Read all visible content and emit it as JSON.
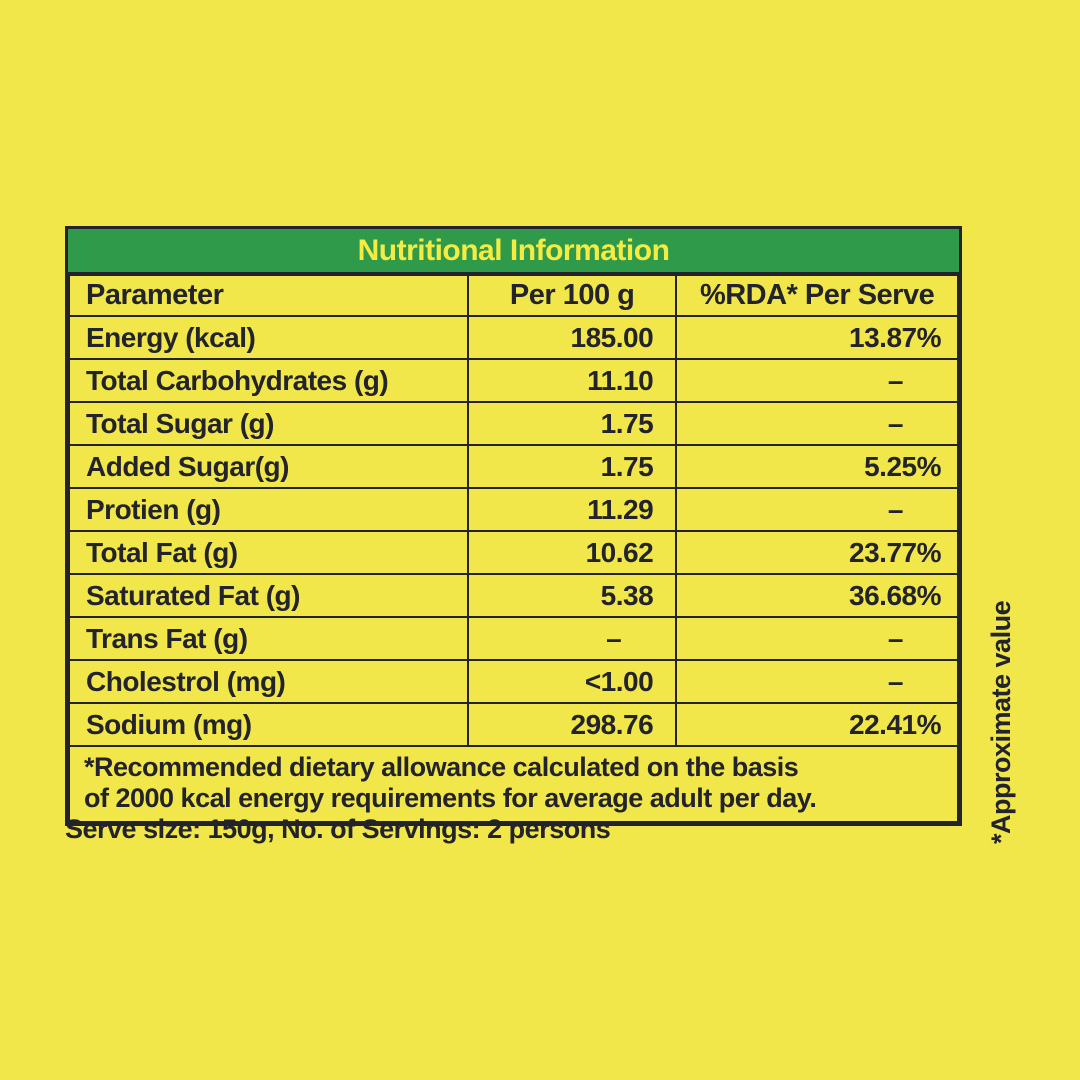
{
  "colors": {
    "background": "#f1e74b",
    "title_bar_bg": "#2f9b4a",
    "title_text": "#f5eb43",
    "text_and_borders": "#23232b"
  },
  "table": {
    "title": "Nutritional Information",
    "columns": [
      "Parameter",
      "Per 100 g",
      "%RDA* Per Serve"
    ],
    "dash": "–",
    "rows": [
      {
        "parameter": "Energy (kcal)",
        "per100g": "185.00",
        "rda": "13.87%"
      },
      {
        "parameter": "Total Carbohydrates (g)",
        "per100g": "11.10",
        "rda": "–"
      },
      {
        "parameter": "Total Sugar (g)",
        "per100g": "1.75",
        "rda": "–"
      },
      {
        "parameter": "Added Sugar(g)",
        "per100g": "1.75",
        "rda": "5.25%"
      },
      {
        "parameter": "Protien (g)",
        "per100g": "11.29",
        "rda": "–"
      },
      {
        "parameter": "Total Fat (g)",
        "per100g": "10.62",
        "rda": "23.77%"
      },
      {
        "parameter": "Saturated Fat (g)",
        "per100g": "5.38",
        "rda": "36.68%"
      },
      {
        "parameter": "Trans Fat (g)",
        "per100g": "–",
        "rda": "–"
      },
      {
        "parameter": "Cholestrol (mg)",
        "per100g": "<1.00",
        "rda": "–"
      },
      {
        "parameter": "Sodium (mg)",
        "per100g": "298.76",
        "rda": "22.41%"
      }
    ],
    "footnote_line1": "*Recommended dietary allowance calculated on the basis",
    "footnote_line2": "of 2000 kcal energy requirements for average adult per day."
  },
  "serve_info": "Serve size: 150g, No. of Servings: 2 persons",
  "approx_note": "*Approximate value"
}
